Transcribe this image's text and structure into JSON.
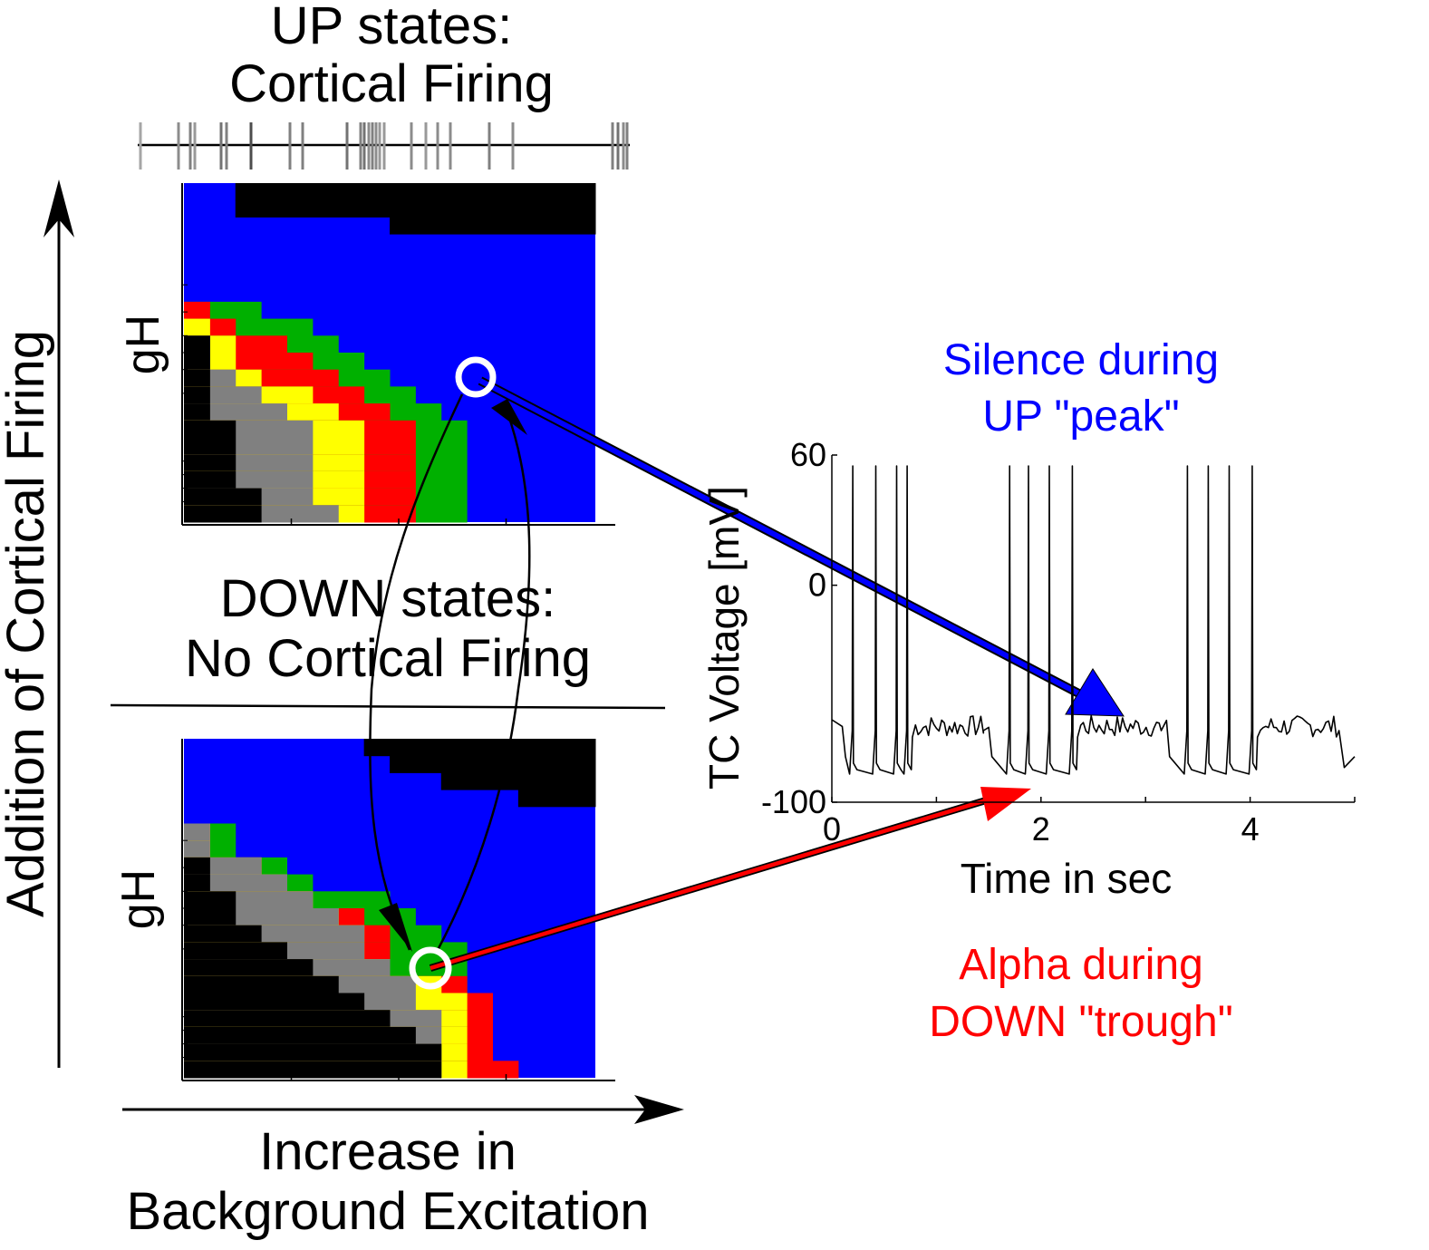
{
  "up_title": [
    "UP states:",
    "Cortical Firing"
  ],
  "down_title": [
    "DOWN states:",
    "No Cortical Firing"
  ],
  "y_axis_label": "Addition of Cortical Firing",
  "x_axis_label": [
    "Increase in",
    "Background Excitation"
  ],
  "gh_label": "gH",
  "silence_label": [
    "Silence during",
    "UP \"peak\""
  ],
  "alpha_label": [
    "Alpha during",
    "DOWN \"trough\""
  ],
  "colors": {
    "blue": "#0000ff",
    "black": "#000000",
    "gray": "#808080",
    "yellow": "#ffff00",
    "green": "#00b000",
    "red": "#ff0000",
    "arrow_blue": "#0000ff",
    "arrow_red": "#ff0000"
  },
  "up_map": {
    "cols": 16,
    "rows": 20,
    "top_black_start_col": [
      2,
      2,
      8
    ],
    "rows_detail": [
      [
        -1,
        -1,
        -1,
        -1,
        -1
      ],
      [
        -1,
        -1,
        -1,
        -1,
        -1
      ],
      [
        -1,
        -1,
        -1,
        -1,
        -1
      ],
      [
        -1,
        -1,
        -1,
        -1,
        -1
      ],
      [
        -1,
        -1,
        -1,
        -1,
        -1
      ],
      [
        -1,
        -1,
        -1,
        -1,
        -1
      ],
      [
        -1,
        -1,
        -1,
        -1,
        -1
      ],
      [
        0,
        0,
        0,
        1,
        2
      ],
      [
        0,
        0,
        1,
        2,
        4
      ],
      [
        1,
        1,
        2,
        4,
        5
      ],
      [
        1,
        1,
        2,
        5,
        6
      ],
      [
        1,
        2,
        3,
        6,
        7
      ],
      [
        1,
        3,
        5,
        7,
        8
      ],
      [
        1,
        4,
        6,
        8,
        9
      ],
      [
        2,
        5,
        7,
        9,
        10
      ],
      [
        2,
        5,
        7,
        9,
        10
      ],
      [
        2,
        5,
        7,
        9,
        10
      ],
      [
        2,
        5,
        7,
        9,
        10
      ],
      [
        3,
        5,
        7,
        9,
        10
      ],
      [
        3,
        6,
        7,
        9,
        10
      ]
    ]
  },
  "down_map": {
    "cols": 16,
    "rows": 20,
    "top_black_start_col": [
      7,
      8,
      10,
      13
    ],
    "rows_detail": [
      [
        -1,
        -1,
        -1,
        -1,
        -1
      ],
      [
        -1,
        -1,
        -1,
        -1,
        -1
      ],
      [
        -1,
        -1,
        -1,
        -1,
        -1
      ],
      [
        -1,
        -1,
        -1,
        -1,
        -1
      ],
      [
        -1,
        -1,
        -1,
        -1,
        -1
      ],
      [
        0,
        1,
        1,
        1,
        1
      ],
      [
        0,
        1,
        1,
        1,
        1
      ],
      [
        1,
        3,
        3,
        3,
        3
      ],
      [
        1,
        4,
        4,
        4,
        4
      ],
      [
        2,
        5,
        5,
        5,
        7
      ],
      [
        2,
        6,
        6,
        7,
        8
      ],
      [
        3,
        7,
        7,
        8,
        9
      ],
      [
        4,
        7,
        7,
        8,
        10
      ],
      [
        5,
        8,
        8,
        8,
        10
      ],
      [
        6,
        9,
        10,
        11,
        10
      ],
      [
        7,
        9,
        11,
        12,
        10
      ],
      [
        8,
        10,
        11,
        12,
        10
      ],
      [
        9,
        10,
        11,
        12,
        10
      ],
      [
        10,
        10,
        11,
        12,
        10
      ],
      [
        10,
        10,
        11,
        13,
        10
      ]
    ]
  },
  "chart_data": {
    "type": "line",
    "xlabel": "Time in sec",
    "ylabel": "TC Voltage [mV]",
    "xlim": [
      0,
      5
    ],
    "ylim": [
      -100,
      60
    ],
    "xticks": [
      0,
      2,
      4
    ],
    "yticks": [
      60,
      0,
      -100
    ],
    "spike_bursts": [
      {
        "t_start": 0.1,
        "spikes": [
          0.2,
          0.42,
          0.62,
          0.72
        ],
        "silence_end": 1.45
      },
      {
        "t_start": 1.5,
        "spikes": [
          1.7,
          1.88,
          2.08,
          2.3
        ],
        "silence_end": 3.15
      },
      {
        "t_start": 3.2,
        "spikes": [
          3.4,
          3.6,
          3.8,
          4.02
        ],
        "silence_end": 4.85
      }
    ],
    "spike_peak": 55,
    "trough": -87,
    "plateau": -65
  }
}
